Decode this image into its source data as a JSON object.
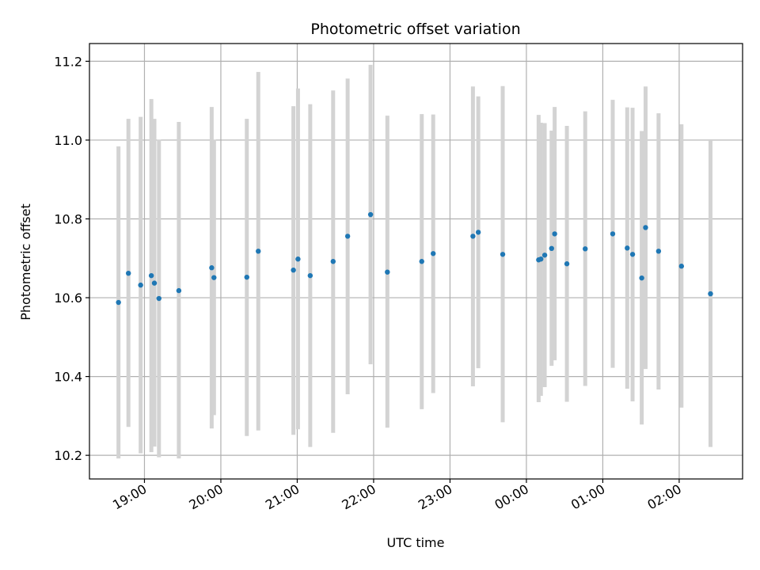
{
  "chart_data": {
    "type": "scatter",
    "title": "Photometric offset variation",
    "xlabel": "UTC time",
    "ylabel": "Photometric offset",
    "x_ticks": [
      "19:00",
      "20:00",
      "21:00",
      "22:00",
      "23:00",
      "00:00",
      "01:00",
      "02:00"
    ],
    "x_tick_hours": [
      0,
      1,
      2,
      3,
      4,
      5,
      6,
      7
    ],
    "x_origin_label": "19:00",
    "xlim_hours": [
      -0.72,
      7.83
    ],
    "y_ticks": [
      "10.2",
      "10.4",
      "10.6",
      "10.8",
      "11.0",
      "11.2"
    ],
    "y_tick_values": [
      10.2,
      10.4,
      10.6,
      10.8,
      11.0,
      11.2
    ],
    "ylim": [
      10.14,
      11.245
    ],
    "grid": true,
    "point_color": "#1f77b4",
    "errorbar_color": "#d3d3d3",
    "series": [
      {
        "points": [
          {
            "t": -0.34,
            "y": 10.588,
            "lo": 10.192,
            "hi": 10.984
          },
          {
            "t": -0.21,
            "y": 10.662,
            "lo": 10.272,
            "hi": 11.054
          },
          {
            "t": -0.05,
            "y": 10.632,
            "lo": 10.205,
            "hi": 11.059
          },
          {
            "t": 0.09,
            "y": 10.656,
            "lo": 10.208,
            "hi": 11.104
          },
          {
            "t": 0.13,
            "y": 10.637,
            "lo": 10.222,
            "hi": 11.054
          },
          {
            "t": 0.19,
            "y": 10.598,
            "lo": 10.195,
            "hi": 11.001
          },
          {
            "t": 0.45,
            "y": 10.618,
            "lo": 10.192,
            "hi": 11.046
          },
          {
            "t": 0.88,
            "y": 10.676,
            "lo": 10.268,
            "hi": 11.084
          },
          {
            "t": 0.91,
            "y": 10.651,
            "lo": 10.302,
            "hi": 11.001
          },
          {
            "t": 1.34,
            "y": 10.652,
            "lo": 10.249,
            "hi": 11.054
          },
          {
            "t": 1.49,
            "y": 10.718,
            "lo": 10.263,
            "hi": 11.173
          },
          {
            "t": 1.95,
            "y": 10.67,
            "lo": 10.252,
            "hi": 11.086
          },
          {
            "t": 2.01,
            "y": 10.698,
            "lo": 10.266,
            "hi": 11.131
          },
          {
            "t": 2.17,
            "y": 10.656,
            "lo": 10.221,
            "hi": 11.091
          },
          {
            "t": 2.47,
            "y": 10.692,
            "lo": 10.257,
            "hi": 11.126
          },
          {
            "t": 2.66,
            "y": 10.756,
            "lo": 10.355,
            "hi": 11.156
          },
          {
            "t": 2.96,
            "y": 10.811,
            "lo": 10.431,
            "hi": 11.191
          },
          {
            "t": 3.18,
            "y": 10.665,
            "lo": 10.27,
            "hi": 11.062
          },
          {
            "t": 3.63,
            "y": 10.692,
            "lo": 10.317,
            "hi": 11.066
          },
          {
            "t": 3.78,
            "y": 10.712,
            "lo": 10.358,
            "hi": 11.065
          },
          {
            "t": 4.3,
            "y": 10.756,
            "lo": 10.375,
            "hi": 11.136
          },
          {
            "t": 4.37,
            "y": 10.766,
            "lo": 10.421,
            "hi": 11.111
          },
          {
            "t": 4.69,
            "y": 10.71,
            "lo": 10.284,
            "hi": 11.137
          },
          {
            "t": 5.16,
            "y": 10.696,
            "lo": 10.335,
            "hi": 11.064
          },
          {
            "t": 5.19,
            "y": 10.698,
            "lo": 10.351,
            "hi": 11.044
          },
          {
            "t": 5.24,
            "y": 10.708,
            "lo": 10.373,
            "hi": 11.043
          },
          {
            "t": 5.33,
            "y": 10.725,
            "lo": 10.427,
            "hi": 11.024
          },
          {
            "t": 5.37,
            "y": 10.762,
            "lo": 10.441,
            "hi": 11.084
          },
          {
            "t": 5.53,
            "y": 10.686,
            "lo": 10.336,
            "hi": 11.036
          },
          {
            "t": 5.77,
            "y": 10.724,
            "lo": 10.376,
            "hi": 11.073
          },
          {
            "t": 6.13,
            "y": 10.762,
            "lo": 10.422,
            "hi": 11.102
          },
          {
            "t": 6.32,
            "y": 10.726,
            "lo": 10.369,
            "hi": 11.083
          },
          {
            "t": 6.39,
            "y": 10.71,
            "lo": 10.337,
            "hi": 11.082
          },
          {
            "t": 6.51,
            "y": 10.65,
            "lo": 10.278,
            "hi": 11.023
          },
          {
            "t": 6.56,
            "y": 10.778,
            "lo": 10.419,
            "hi": 11.136
          },
          {
            "t": 6.73,
            "y": 10.718,
            "lo": 10.367,
            "hi": 11.068
          },
          {
            "t": 7.03,
            "y": 10.68,
            "lo": 10.321,
            "hi": 11.04
          },
          {
            "t": 7.41,
            "y": 10.61,
            "lo": 10.221,
            "hi": 11.0
          }
        ]
      }
    ]
  }
}
